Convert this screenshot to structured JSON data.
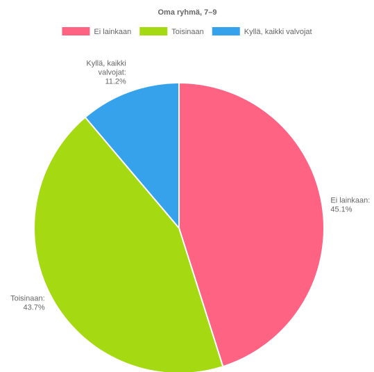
{
  "chart_data": {
    "type": "pie",
    "title": "Oma ryhmä, 7–9",
    "legend_position": "top",
    "categories": [
      "Ei lainkaan",
      "Toisinaan",
      "Kyllä, kaikki valvojat"
    ],
    "values": [
      45.1,
      43.7,
      11.2
    ],
    "unit": "%",
    "colors": [
      "#ff6384",
      "#a5d911",
      "#36a2eb"
    ],
    "slice_labels": [
      [
        "Ei lainkaan:",
        "45.1%"
      ],
      [
        "Toisinaan:",
        "43.7%"
      ],
      [
        "Kyllä, kaikki",
        "valvojat:",
        "11.2%"
      ]
    ]
  }
}
